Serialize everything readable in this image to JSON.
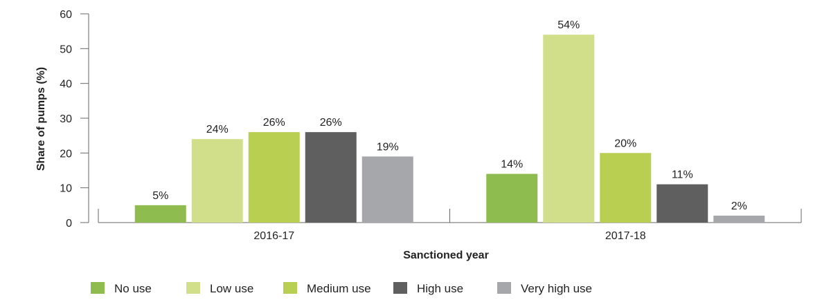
{
  "chart_data": {
    "type": "bar",
    "categories": [
      "2016-17",
      "2017-18"
    ],
    "series": [
      {
        "name": "No use",
        "values": [
          5,
          14
        ],
        "labels": [
          "5%",
          "14%"
        ],
        "color": "#8fbc4f"
      },
      {
        "name": "Low use",
        "values": [
          24,
          54
        ],
        "labels": [
          "24%",
          "54%"
        ],
        "color": "#d2df8a"
      },
      {
        "name": "Medium use",
        "values": [
          26,
          20
        ],
        "labels": [
          "26%",
          "20%"
        ],
        "color": "#b8cf52"
      },
      {
        "name": "High use",
        "values": [
          26,
          11
        ],
        "labels": [
          "26%",
          "11%"
        ],
        "color": "#5f5f5f"
      },
      {
        "name": "Very high use",
        "values": [
          19,
          2
        ],
        "labels": [
          "19%",
          "2%"
        ],
        "color": "#a6a7ab"
      }
    ],
    "xlabel": "Sanctioned year",
    "ylabel": "Share of pumps (%)",
    "ylim": [
      0,
      60
    ],
    "yticks": [
      0,
      10,
      20,
      30,
      40,
      50,
      60
    ],
    "legend_position": "bottom-left",
    "grid": false
  }
}
